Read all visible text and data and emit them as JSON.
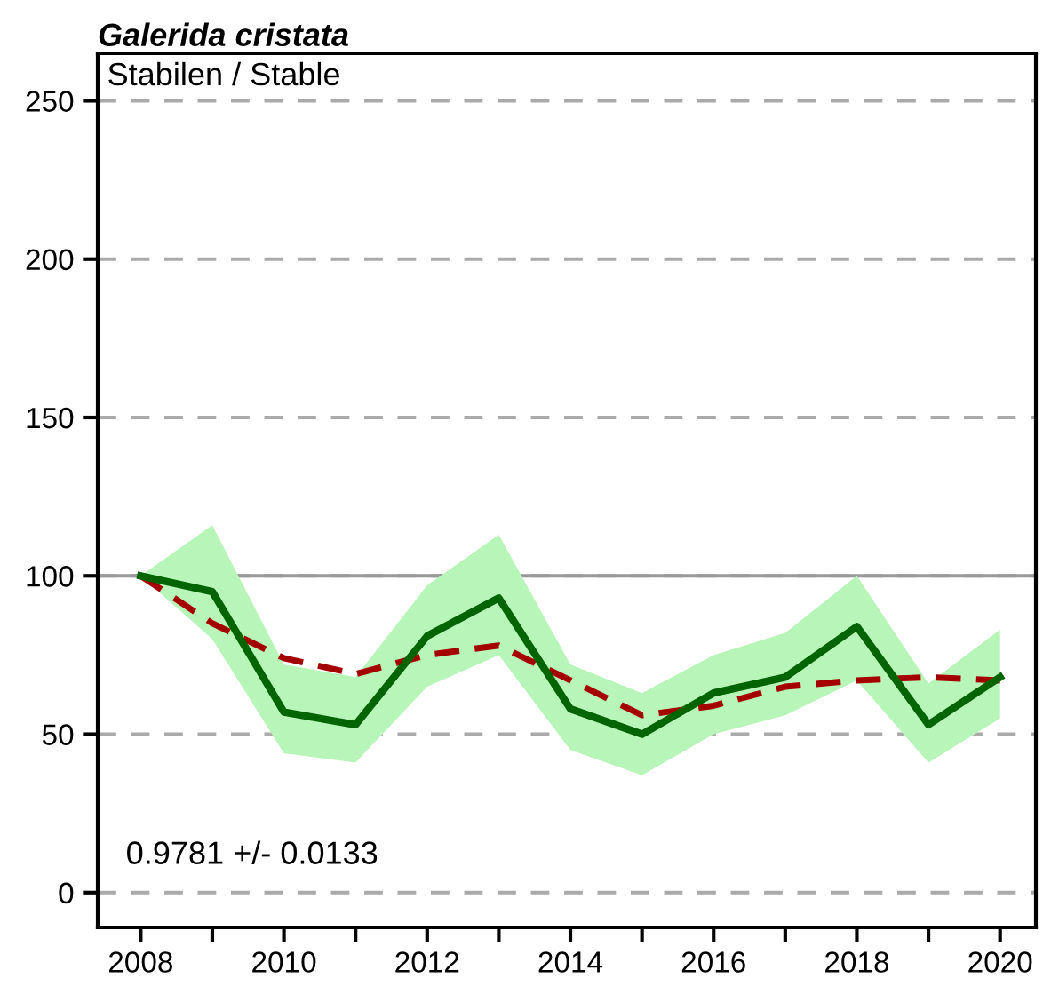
{
  "chart_data": {
    "type": "line",
    "title": "Galerida cristata",
    "annotations": [
      "Stabilen / Stable",
      "0.9781 +/- 0.0133"
    ],
    "x": [
      2008,
      2009,
      2010,
      2011,
      2012,
      2013,
      2014,
      2015,
      2016,
      2017,
      2018,
      2019,
      2020
    ],
    "series": [
      {
        "color": "#006400",
        "values": [
          100,
          95,
          57,
          53,
          81,
          93,
          58,
          50,
          63,
          68,
          84,
          53,
          68
        ],
        "lower": [
          100,
          80,
          44,
          41,
          65,
          75,
          45,
          37,
          50,
          56,
          67,
          41,
          55
        ],
        "upper": [
          100,
          116,
          72,
          68,
          97,
          113,
          72,
          63,
          75,
          82,
          100,
          66,
          83
        ],
        "line_style": "solid"
      },
      {
        "color": "#a50000",
        "values": [
          100,
          85,
          74,
          69,
          75,
          78,
          67,
          56,
          59,
          65,
          67,
          68,
          67
        ],
        "line_style": "dashed"
      }
    ],
    "xlim": [
      2007.4,
      2020.5
    ],
    "ylim": [
      -11,
      265
    ],
    "xticks": [
      2008,
      {
        "value": 2009,
        "label": null
      },
      2010,
      {
        "value": 2011,
        "label": null
      },
      2012,
      {
        "value": 2013,
        "label": null
      },
      2014,
      {
        "value": 2015,
        "label": null
      },
      2016,
      {
        "value": 2017,
        "label": null
      },
      2018,
      {
        "value": 2019,
        "label": null
      },
      2020
    ],
    "yticks": [
      0,
      50,
      100,
      150,
      200,
      250
    ],
    "ref_lines": [
      {
        "axis": "y",
        "value": 100,
        "color": "#999999",
        "line_style": "solid"
      }
    ],
    "grid": "y",
    "legend": false,
    "marker": "none"
  }
}
